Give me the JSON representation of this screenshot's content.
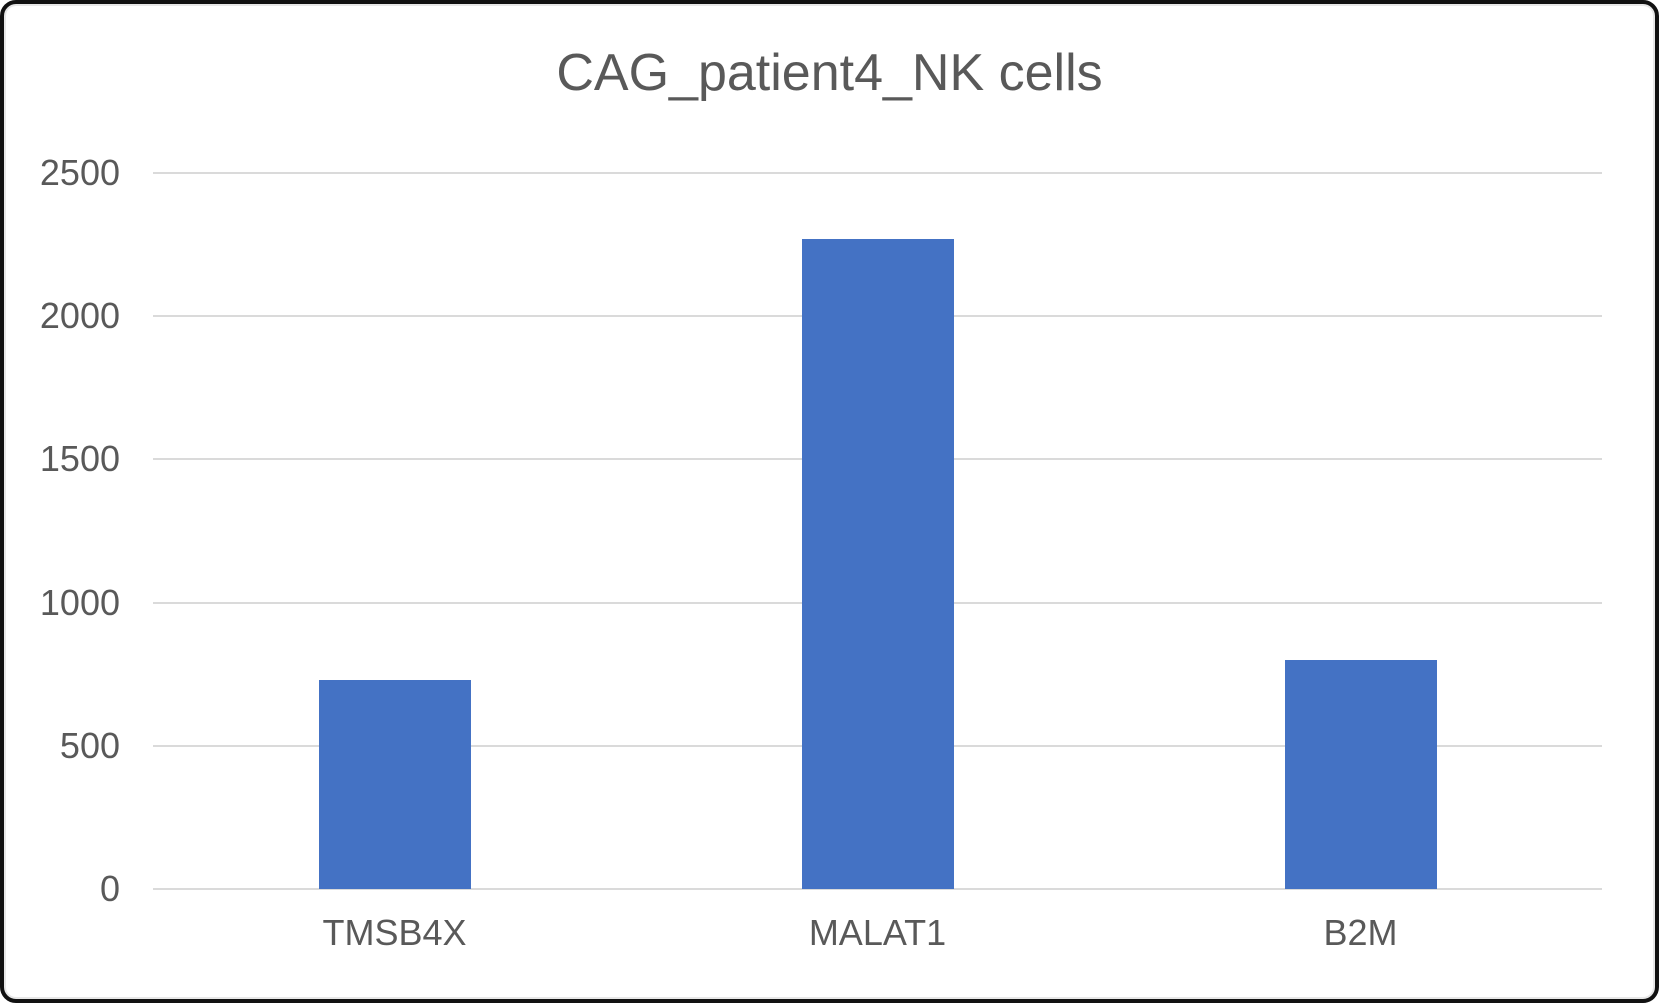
{
  "chart_data": {
    "type": "bar",
    "title": "CAG_patient4_NK cells",
    "categories": [
      "TMSB4X",
      "MALAT1",
      "B2M"
    ],
    "values": [
      730,
      2270,
      800
    ],
    "xlabel": "",
    "ylabel": "",
    "ylim": [
      0,
      2500
    ],
    "yticks": [
      0,
      500,
      1000,
      1500,
      2000,
      2500
    ],
    "grid": true,
    "legend": "none",
    "colors": {
      "bar": "#4472C4",
      "gridline": "#DADADA",
      "axis_text": "#595959",
      "title_text": "#595959",
      "background": "#FFFFFF",
      "frame_border": "#111111"
    }
  }
}
